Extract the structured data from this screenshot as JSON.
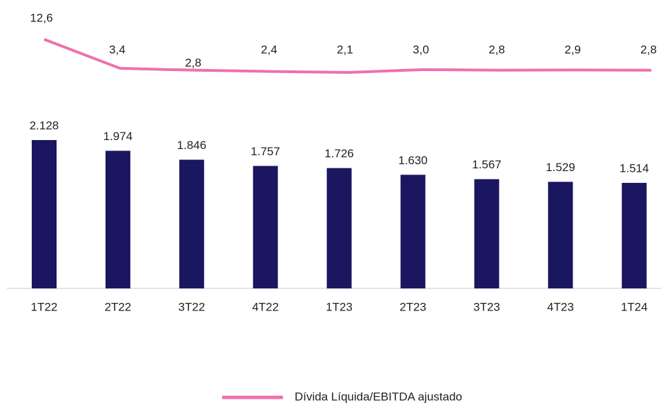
{
  "chart_data": {
    "type": "bar-line",
    "categories": [
      "1T22",
      "2T22",
      "3T22",
      "4T22",
      "1T23",
      "2T23",
      "3T23",
      "4T23",
      "1T24"
    ],
    "series": [
      {
        "type": "bar",
        "color": "#1b1660",
        "values": [
          2128,
          1974,
          1846,
          1757,
          1726,
          1630,
          1567,
          1529,
          1514
        ],
        "value_labels": [
          "2.128",
          "1.974",
          "1.846",
          "1.757",
          "1.726",
          "1.630",
          "1.567",
          "1.529",
          "1.514"
        ]
      },
      {
        "type": "line",
        "name": "Dívida Líquida/EBITDA ajustado",
        "color": "#f06fad",
        "axis": "y2",
        "values": [
          12.6,
          3.4,
          2.8,
          2.4,
          2.1,
          3.0,
          2.8,
          2.9,
          2.8
        ],
        "value_labels": [
          "12,6",
          "3,4",
          "2,8",
          "2,4",
          "2,1",
          "3,0",
          "2,8",
          "2,9",
          "2,8"
        ]
      }
    ],
    "legend": "bottom"
  }
}
